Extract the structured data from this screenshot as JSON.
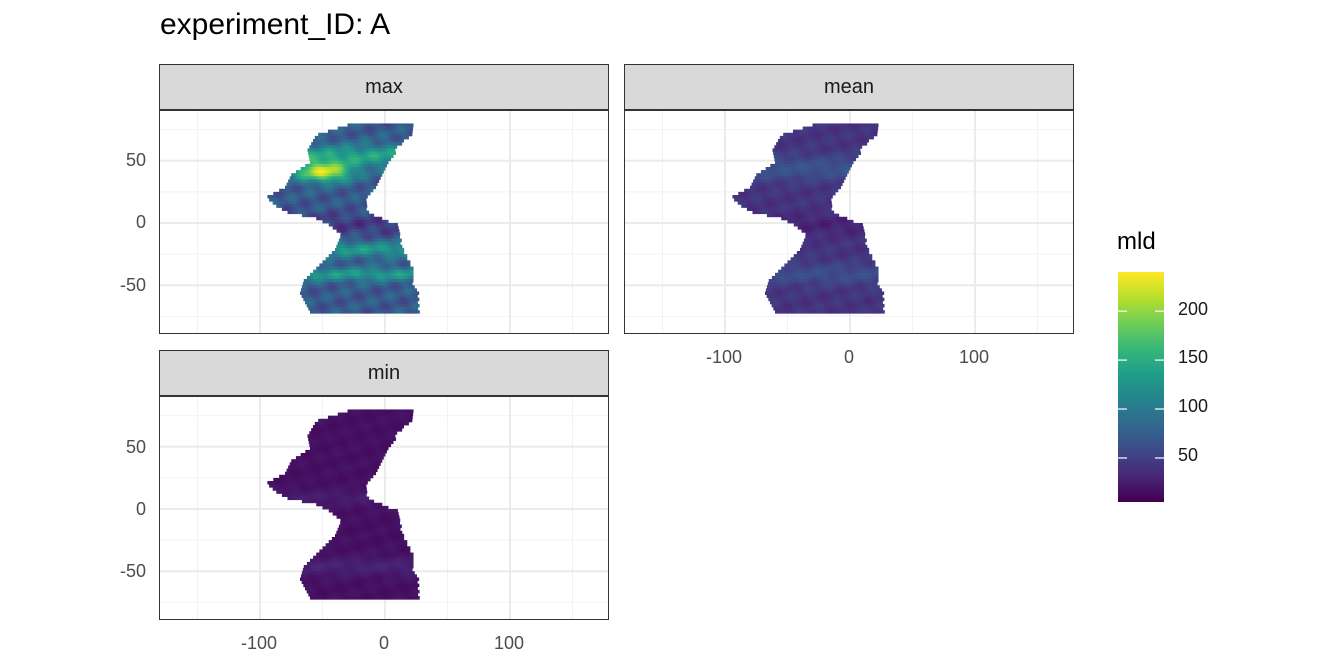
{
  "title": "experiment_ID: A",
  "chart_data": {
    "type": "heatmap",
    "title": "experiment_ID: A",
    "facets": [
      {
        "label": "max",
        "mld_range": [
          20,
          240
        ],
        "description_pattern": "high mld in North Atlantic (~240) and Southern bands (~150)"
      },
      {
        "label": "mean",
        "mld_range": [
          20,
          80
        ]
      },
      {
        "label": "min",
        "mld_range": [
          5,
          40
        ]
      }
    ],
    "x_ticks": [
      "-100",
      "0",
      "100"
    ],
    "x_tick_values": [
      -100,
      0,
      100
    ],
    "y_ticks": [
      "50",
      "0",
      "-50"
    ],
    "y_tick_values": [
      50,
      0,
      -50
    ],
    "xlim": [
      -180,
      180
    ],
    "ylim": [
      -90,
      90
    ],
    "grid": true,
    "legend": {
      "title": "mld",
      "ticks": [
        "200",
        "150",
        "100",
        "50"
      ],
      "tick_values": [
        200,
        150,
        100,
        50
      ],
      "range": [
        5,
        240
      ],
      "palette": "viridis",
      "placement": "right"
    }
  }
}
